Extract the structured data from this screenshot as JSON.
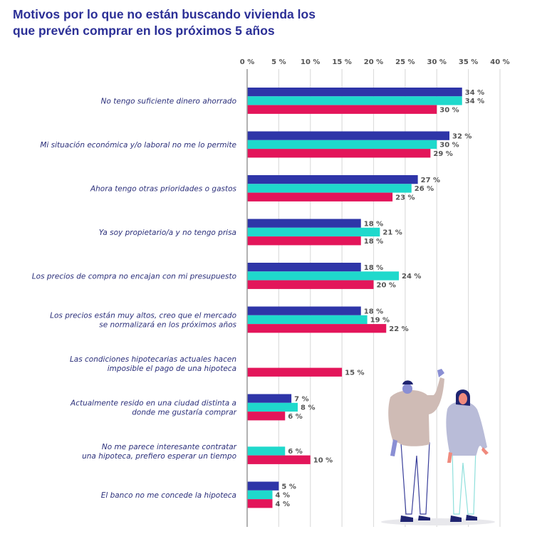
{
  "title_lines": [
    "Motivos por lo que no están buscando vivienda los",
    "que prevén comprar en los próximos 5 años"
  ],
  "colors": {
    "series_1": "#2e35a8",
    "series_2": "#1fd9cc",
    "series_3": "#e3155a",
    "title": "#2b2f96",
    "category_text": "#2b2f7a",
    "value_text": "#555555",
    "grid": "#dddddd",
    "axis": "#999999"
  },
  "illustration": {
    "description": "two-people-illustration"
  },
  "chart_data": {
    "type": "bar",
    "orientation": "horizontal",
    "title": "Motivos por lo que no están buscando vivienda los que prevén comprar en los próximos 5 años",
    "xlabel": "",
    "ylabel": "",
    "xlim": [
      0,
      40
    ],
    "x_ticks": [
      0,
      5,
      10,
      15,
      20,
      25,
      30,
      35,
      40
    ],
    "x_tick_labels": [
      "0 %",
      "5 %",
      "10 %",
      "15 %",
      "20 %",
      "25 %",
      "30 %",
      "35 %",
      "40 %"
    ],
    "x_axis_position": "top",
    "grid": true,
    "legend": "none",
    "value_suffix": " %",
    "categories": [
      [
        "No tengo suficiente dinero ahorrado"
      ],
      [
        "Mi situación económica y/o laboral no me lo permite"
      ],
      [
        "Ahora tengo otras prioridades o gastos"
      ],
      [
        "Ya soy propietario/a y no tengo prisa"
      ],
      [
        "Los precios de compra no encajan con mi presupuesto"
      ],
      [
        "Los precios están muy altos, creo que el mercado",
        "se normalizará en los próximos años"
      ],
      [
        "Las condiciones hipotecarias actuales hacen",
        "imposible el pago de una hipoteca"
      ],
      [
        "Actualmente resido en una ciudad distinta a",
        "donde me gustaría comprar"
      ],
      [
        "No me parece interesante contratar",
        "una hipoteca, prefiero esperar un tiempo"
      ],
      [
        "El banco no me concede la hipoteca"
      ]
    ],
    "series": [
      {
        "name": "series_1",
        "color": "#2e35a8",
        "values": [
          34,
          32,
          27,
          18,
          18,
          18,
          null,
          7,
          null,
          5
        ]
      },
      {
        "name": "series_2",
        "color": "#1fd9cc",
        "values": [
          34,
          30,
          26,
          21,
          24,
          19,
          null,
          8,
          6,
          4
        ]
      },
      {
        "name": "series_3",
        "color": "#e3155a",
        "values": [
          30,
          29,
          23,
          18,
          20,
          22,
          15,
          6,
          10,
          4
        ]
      }
    ]
  }
}
